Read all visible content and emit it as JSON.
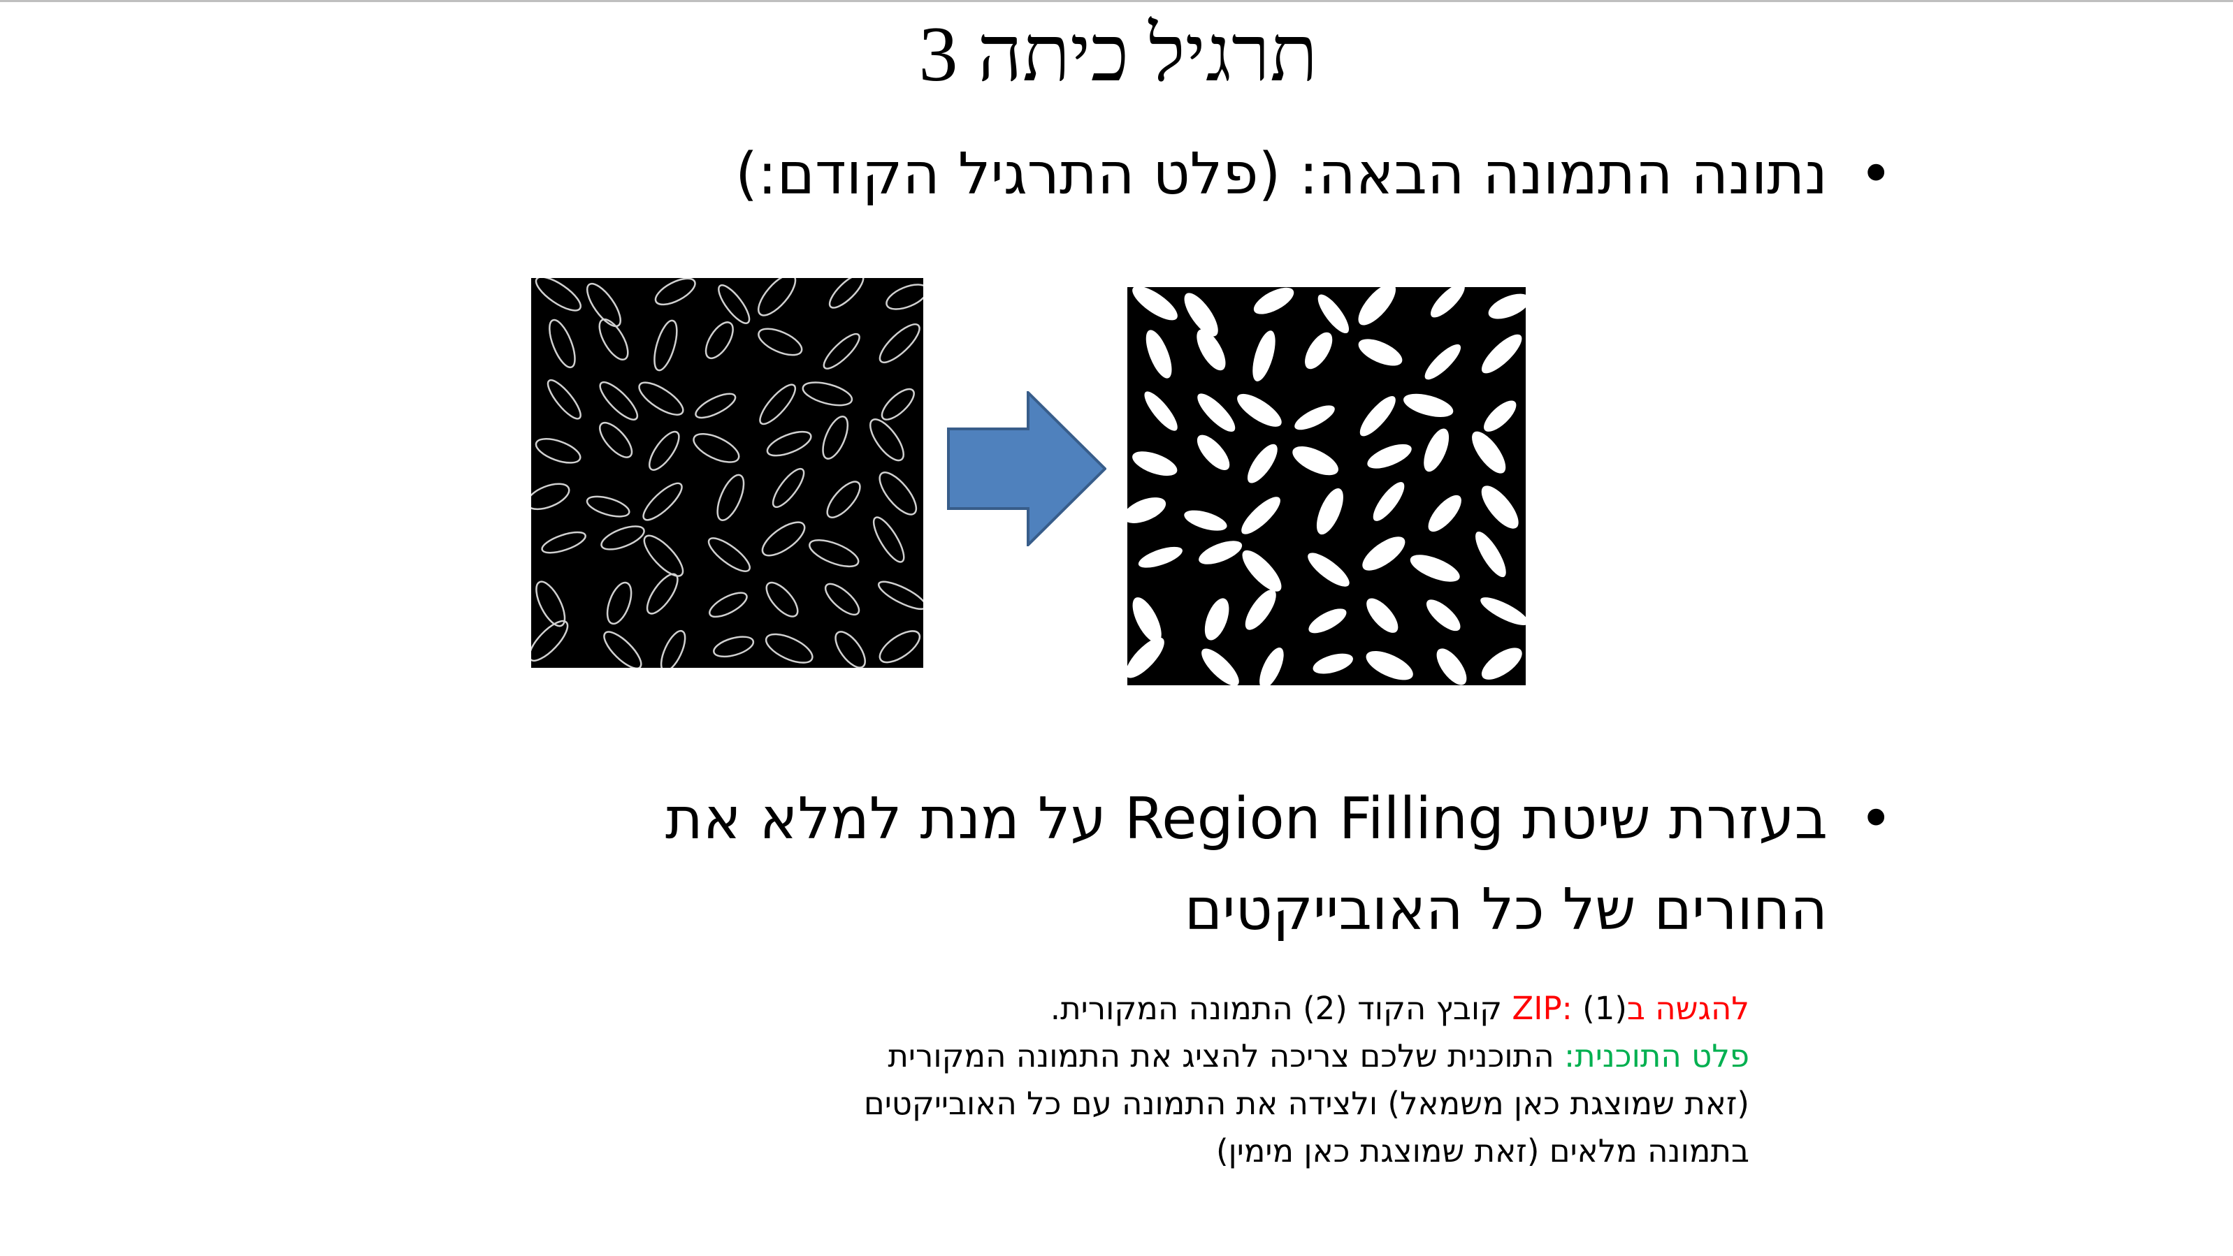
{
  "slide": {
    "title": "תרגיל כיתה 3",
    "bullet1": "נתונה התמונה הבאה: (פלט התרגיל הקודם:)",
    "bullet2_line1_part1": "בעזרת שיטת ",
    "bullet2_line1_latin": "Region Filling",
    "bullet2_line1_part2": " על מנת למלא את",
    "bullet2_line2": "החורים של כל האובייקטים",
    "bullet_symbol": "•",
    "colors": {
      "submit_label": "#ff0000",
      "output_label": "#00b050",
      "arrow": "#4f81bd",
      "arrow_border": "#385d8a"
    },
    "images": {
      "left": "rice-outlines-image",
      "right": "rice-filled-image"
    }
  },
  "notes": {
    "submit_label": "להגשה בZIP",
    "submit_colon": ":",
    "submit_text": " (1) קובץ הקוד (2) התמונה המקורית.",
    "output_label": "פלט התוכנית",
    "output_colon": ":",
    "output_text": " התוכנית שלכם צריכה להציג את התמונה המקורית",
    "line3": "(זאת שמוצגת כאן משמאל) ולצידה את התמונה עם כל האובייקטים",
    "line4": "בתמונה מלאים (זאת שמוצגת כאן מימין)"
  }
}
